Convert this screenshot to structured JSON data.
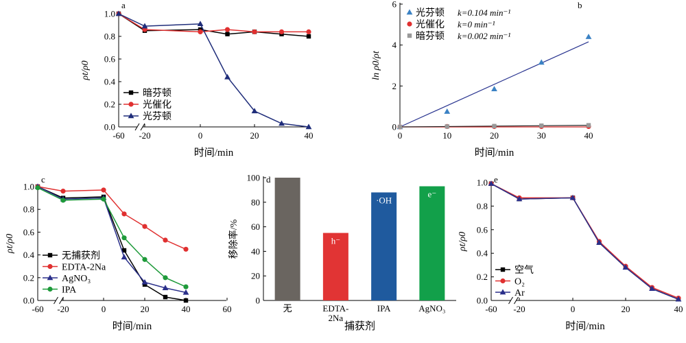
{
  "chart_data": [
    {
      "panel": "a",
      "type": "line",
      "xlabel": "时间/min",
      "ylabel": "ρt/ρ0",
      "x_ticks": [
        "-60",
        "-20",
        "0",
        "20",
        "40"
      ],
      "y_ticks": [
        "0.0",
        "0.2",
        "0.4",
        "0.6",
        "0.8",
        "1.0"
      ],
      "ylim": [
        0,
        1.0
      ],
      "legend_position": "bottom-left",
      "series": [
        {
          "name": "暗芬顿",
          "color": "#000000",
          "marker": "square",
          "x": [
            -60,
            -20,
            0,
            10,
            20,
            30,
            40
          ],
          "y": [
            1.0,
            0.85,
            0.86,
            0.82,
            0.84,
            0.82,
            0.8
          ]
        },
        {
          "name": "光催化",
          "color": "#e03030",
          "marker": "circle",
          "x": [
            -60,
            -20,
            0,
            10,
            20,
            30,
            40
          ],
          "y": [
            1.0,
            0.86,
            0.84,
            0.86,
            0.84,
            0.84,
            0.84
          ]
        },
        {
          "name": "光芬顿",
          "color": "#1f2d7a",
          "marker": "triangle",
          "x": [
            -60,
            -20,
            0,
            10,
            20,
            30,
            40
          ],
          "y": [
            1.0,
            0.89,
            0.91,
            0.44,
            0.14,
            0.03,
            0.0
          ]
        }
      ]
    },
    {
      "panel": "b",
      "type": "scatter",
      "xlabel": "时间/min",
      "ylabel": "ln ρ0/ρt",
      "x_ticks": [
        "0",
        "10",
        "20",
        "30",
        "40"
      ],
      "y_ticks": [
        "0",
        "2",
        "4",
        "6"
      ],
      "xlim": [
        0,
        40
      ],
      "ylim": [
        0,
        6
      ],
      "legend_position": "top-left",
      "series": [
        {
          "name": "光芬顿",
          "k_label": "k=0.104 min⁻¹",
          "color": "#3b82c4",
          "marker": "triangle",
          "x": [
            0,
            10,
            20,
            30,
            40
          ],
          "y": [
            0,
            0.75,
            1.85,
            3.15,
            4.4
          ],
          "fit": [
            0,
            0.104
          ]
        },
        {
          "name": "光催化",
          "k_label": "k=0 min⁻¹",
          "color": "#e03030",
          "marker": "circle",
          "x": [
            0,
            10,
            20,
            30,
            40
          ],
          "y": [
            0,
            0.02,
            0.02,
            0.02,
            0.02
          ],
          "fit": [
            0,
            0
          ]
        },
        {
          "name": "暗芬顿",
          "k_label": "k=0.002 min⁻¹",
          "color": "#999999",
          "marker": "square",
          "x": [
            0,
            10,
            20,
            30,
            40
          ],
          "y": [
            0,
            0.02,
            0.04,
            0.06,
            0.08
          ],
          "fit": [
            0,
            0.002
          ]
        }
      ]
    },
    {
      "panel": "c",
      "type": "line",
      "xlabel": "时间/min",
      "ylabel": "ρt/ρ0",
      "x_ticks": [
        "-60",
        "-20",
        "0",
        "20",
        "40",
        "60"
      ],
      "y_ticks": [
        "0.0",
        "0.2",
        "0.4",
        "0.6",
        "0.8",
        "1.0"
      ],
      "ylim": [
        0,
        1.0
      ],
      "legend_position": "bottom-left",
      "series": [
        {
          "name": "无捕获剂",
          "color": "#000000",
          "marker": "square",
          "x": [
            -60,
            -20,
            0,
            10,
            20,
            30,
            40
          ],
          "y": [
            1.0,
            0.9,
            0.91,
            0.44,
            0.14,
            0.03,
            0.0
          ]
        },
        {
          "name": "EDTA-2Na",
          "color": "#e03030",
          "marker": "circle",
          "x": [
            -60,
            -20,
            0,
            10,
            20,
            30,
            40
          ],
          "y": [
            1.0,
            0.96,
            0.97,
            0.76,
            0.65,
            0.53,
            0.45
          ]
        },
        {
          "name": "AgNO₃",
          "color": "#2a2f8a",
          "marker": "triangle",
          "x": [
            -60,
            -20,
            0,
            10,
            20,
            30,
            40
          ],
          "y": [
            1.0,
            0.89,
            0.9,
            0.38,
            0.16,
            0.11,
            0.07
          ]
        },
        {
          "name": "IPA",
          "color": "#1e9a3a",
          "marker": "circle",
          "x": [
            -60,
            -20,
            0,
            10,
            20,
            30,
            40
          ],
          "y": [
            0.99,
            0.88,
            0.89,
            0.55,
            0.36,
            0.2,
            0.12
          ]
        }
      ]
    },
    {
      "panel": "d",
      "type": "bar",
      "xlabel": "捕获剂",
      "ylabel": "移除率/%",
      "y_ticks": [
        "0",
        "20",
        "40",
        "60",
        "80",
        "100"
      ],
      "ylim": [
        0,
        100
      ],
      "categories": [
        "无",
        "EDTA-2Na",
        "IPA",
        "AgNO₃"
      ],
      "category_lines": [
        [
          "无"
        ],
        [
          "EDTA-",
          "2Na"
        ],
        [
          "IPA"
        ],
        [
          "AgNO₃"
        ]
      ],
      "values": [
        100,
        55,
        88,
        93
      ],
      "colors": [
        "#6a6560",
        "#e13434",
        "#1f5a9e",
        "#12a04a"
      ],
      "annotations": [
        "",
        "h⁻",
        "·OH",
        "e⁻"
      ]
    },
    {
      "panel": "e",
      "type": "line",
      "xlabel": "时间/min",
      "ylabel": "ρt/ρ0",
      "x_ticks": [
        "-60",
        "-20",
        "0",
        "20",
        "40"
      ],
      "y_ticks": [
        "0.0",
        "0.2",
        "0.4",
        "0.6",
        "0.8",
        "1.0"
      ],
      "ylim": [
        0,
        1.0
      ],
      "legend_position": "bottom-left",
      "series": [
        {
          "name": "空气",
          "color": "#000000",
          "marker": "square",
          "x": [
            -60,
            -20,
            0,
            10,
            20,
            30,
            40
          ],
          "y": [
            0.99,
            0.86,
            0.87,
            0.49,
            0.28,
            0.1,
            0.01
          ]
        },
        {
          "name": "O₂",
          "color": "#e03030",
          "marker": "circle",
          "x": [
            -60,
            -20,
            0,
            10,
            20,
            30,
            40
          ],
          "y": [
            0.99,
            0.87,
            0.87,
            0.5,
            0.29,
            0.11,
            0.02
          ]
        },
        {
          "name": "Ar",
          "color": "#2a2f8a",
          "marker": "triangle",
          "x": [
            -60,
            -20,
            0,
            10,
            20,
            30,
            40
          ],
          "y": [
            0.99,
            0.86,
            0.87,
            0.49,
            0.28,
            0.1,
            0.01
          ]
        }
      ]
    }
  ]
}
